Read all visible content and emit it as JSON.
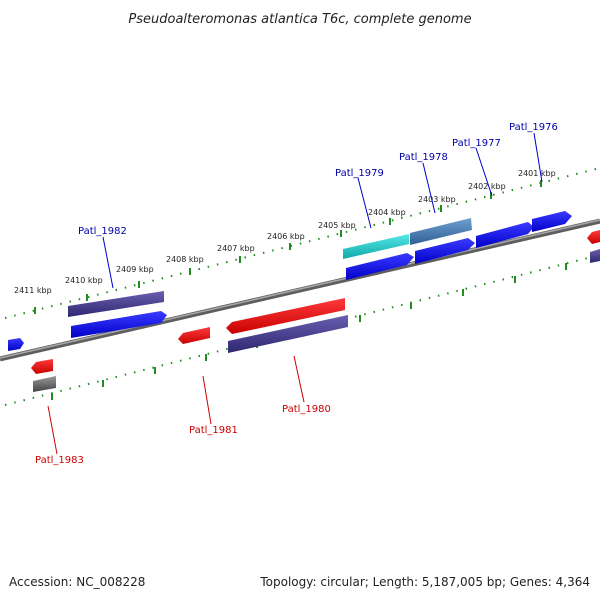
{
  "header": {
    "title": "Pseudoalteromonas atlantica T6c, complete genome"
  },
  "footer": {
    "accession": "Accession: NC_008228",
    "summary": "Topology: circular; Length: 5,187,005 bp; Genes: 4,364"
  },
  "colors": {
    "forward_gene": "#0000ee",
    "reverse_gene": "#ee0000",
    "slate_gene": "#4a3f8f",
    "gray_gene": "#666666",
    "cyan_gene": "#22cccc",
    "steelblue_gene": "#4a7fb5",
    "backbone": "#888888",
    "tick": "#228b22",
    "forward_label": "#0000aa",
    "reverse_label": "#cc0000"
  },
  "tick_labels": [
    {
      "text": "2411 kbp"
    },
    {
      "text": "2410 kbp"
    },
    {
      "text": "2409 kbp"
    },
    {
      "text": "2408 kbp"
    },
    {
      "text": "2407 kbp"
    },
    {
      "text": "2406 kbp"
    },
    {
      "text": "2405 kbp"
    },
    {
      "text": "2404 kbp"
    },
    {
      "text": "2403 kbp"
    },
    {
      "text": "2402 kbp"
    },
    {
      "text": "2401 kbp"
    }
  ],
  "gene_labels": [
    {
      "text": "Patl_1976",
      "strand": "forward"
    },
    {
      "text": "Patl_1977",
      "strand": "forward"
    },
    {
      "text": "Patl_1978",
      "strand": "forward"
    },
    {
      "text": "Patl_1979",
      "strand": "forward"
    },
    {
      "text": "Patl_1982",
      "strand": "forward"
    },
    {
      "text": "Patl_1980",
      "strand": "reverse"
    },
    {
      "text": "Patl_1981",
      "strand": "reverse"
    },
    {
      "text": "Patl_1983",
      "strand": "reverse"
    }
  ]
}
